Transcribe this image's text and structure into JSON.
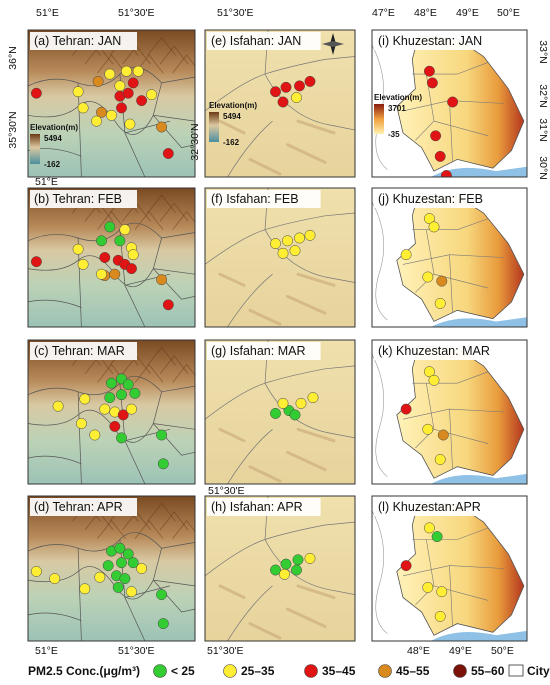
{
  "map_data": {
    "colors": {
      "lt25": "#33cc33",
      "c25_35": "#ffee33",
      "c35_45": "#e01414",
      "c45_55": "#d88a1e",
      "c55_60": "#7a1208",
      "elev_high": "#6b3a14",
      "elev_mid": "#dcc8a0",
      "elev_low": "#4a8fa0",
      "khz_high": "#b4361e",
      "khz_low": "#fff0b0",
      "water": "#8fc1e6"
    },
    "legend": {
      "title": "PM2.5 Conc.(μg/m³)",
      "items": [
        {
          "key": "lt25",
          "label": "< 25"
        },
        {
          "key": "c25_35",
          "label": "25–35"
        },
        {
          "key": "c35_45",
          "label": "35–45"
        },
        {
          "key": "c45_55",
          "label": "45–55"
        },
        {
          "key": "c55_60",
          "label": "55–60"
        }
      ],
      "city_label": "City"
    },
    "columns": [
      {
        "name": "Tehran",
        "top_ticks": [
          "51°E",
          "51°30'E"
        ],
        "bottom_ticks": [
          "51°E",
          "51°30'E"
        ],
        "left_ticks": [
          "36°N",
          "35°30'N"
        ],
        "elevation_legend": {
          "title": "Elevation(m)",
          "max": "5494",
          "min": "-162"
        }
      },
      {
        "name": "Isfahan",
        "top_ticks": [
          "51°30'E"
        ],
        "bottom_ticks": [
          "51°30'E"
        ],
        "left_ticks": [
          "32°30'N"
        ],
        "elevation_legend": {
          "title": "Elevation(m)",
          "max": "5494",
          "min": "-162"
        }
      },
      {
        "name": "Khuzestan",
        "top_ticks": [
          "47°E",
          "48°E",
          "49°E",
          "50°E"
        ],
        "bottom_ticks": [
          "48°E",
          "49°E",
          "50°E"
        ],
        "right_ticks": [
          "33°N",
          "32°N",
          "31°N",
          "30°N"
        ],
        "elevation_legend": {
          "title": "Elevation(m)",
          "max": "3701",
          "min": "-35"
        }
      }
    ],
    "panels": [
      {
        "id": "a",
        "title": "(a) Tehran: JAN",
        "region": "tehran",
        "stations": [
          [
            "c35_45",
            0.05,
            0.43
          ],
          [
            "c25_35",
            0.3,
            0.42
          ],
          [
            "c25_35",
            0.33,
            0.53
          ],
          [
            "c45_55",
            0.42,
            0.35
          ],
          [
            "c25_35",
            0.49,
            0.3
          ],
          [
            "c25_35",
            0.55,
            0.38
          ],
          [
            "c35_45",
            0.55,
            0.45
          ],
          [
            "c35_45",
            0.6,
            0.43
          ],
          [
            "c35_45",
            0.63,
            0.36
          ],
          [
            "c25_35",
            0.66,
            0.28
          ],
          [
            "c25_35",
            0.59,
            0.28
          ],
          [
            "c35_45",
            0.68,
            0.48
          ],
          [
            "c35_45",
            0.56,
            0.53
          ],
          [
            "c45_55",
            0.44,
            0.56
          ],
          [
            "c25_35",
            0.5,
            0.58
          ],
          [
            "c25_35",
            0.41,
            0.62
          ],
          [
            "c25_35",
            0.61,
            0.64
          ],
          [
            "c45_55",
            0.8,
            0.66
          ],
          [
            "c35_45",
            0.84,
            0.84
          ],
          [
            "c25_35",
            0.74,
            0.44
          ]
        ]
      },
      {
        "id": "e",
        "title": "(e) Isfahan: JAN",
        "region": "isfahan",
        "north_arrow": true,
        "stations": [
          [
            "c35_45",
            0.47,
            0.42
          ],
          [
            "c35_45",
            0.54,
            0.39
          ],
          [
            "c35_45",
            0.63,
            0.38
          ],
          [
            "c35_45",
            0.7,
            0.35
          ],
          [
            "c35_45",
            0.52,
            0.49
          ],
          [
            "c25_35",
            0.61,
            0.46
          ]
        ]
      },
      {
        "id": "i",
        "title": "(i) Khuzestan: JAN",
        "region": "khuzestan",
        "stations": [
          [
            "c35_45",
            0.37,
            0.28
          ],
          [
            "c35_45",
            0.39,
            0.36
          ],
          [
            "c35_45",
            0.41,
            0.72
          ],
          [
            "c35_45",
            0.44,
            0.86
          ],
          [
            "c35_45",
            0.52,
            0.49
          ],
          [
            "c35_45",
            0.48,
            0.99
          ]
        ]
      },
      {
        "id": "b",
        "title": "(b) Tehran: FEB",
        "region": "tehran",
        "stations": [
          [
            "c35_45",
            0.05,
            0.53
          ],
          [
            "c25_35",
            0.3,
            0.44
          ],
          [
            "c25_35",
            0.33,
            0.55
          ],
          [
            "c45_55",
            0.46,
            0.63
          ],
          [
            "c33cc33",
            0.0,
            0.0
          ],
          [
            "lt25",
            0.49,
            0.28
          ],
          [
            "lt25",
            0.44,
            0.38
          ],
          [
            "lt25",
            0.55,
            0.38
          ],
          [
            "c25_35",
            0.58,
            0.3
          ],
          [
            "c25_35",
            0.62,
            0.43
          ],
          [
            "c35_45",
            0.46,
            0.5
          ],
          [
            "c35_45",
            0.54,
            0.52
          ],
          [
            "c35_45",
            0.58,
            0.55
          ],
          [
            "c35_45",
            0.62,
            0.58
          ],
          [
            "c45_55",
            0.52,
            0.62
          ],
          [
            "c25_35",
            0.63,
            0.48
          ],
          [
            "c45_55",
            0.8,
            0.66
          ],
          [
            "c35_45",
            0.84,
            0.84
          ],
          [
            "c25_35",
            0.44,
            0.62
          ]
        ]
      },
      {
        "id": "f",
        "title": "(f) Isfahan: FEB",
        "region": "isfahan",
        "stations": [
          [
            "c25_35",
            0.47,
            0.4
          ],
          [
            "c25_35",
            0.55,
            0.38
          ],
          [
            "c25_35",
            0.63,
            0.36
          ],
          [
            "c25_35",
            0.7,
            0.34
          ],
          [
            "c25_35",
            0.52,
            0.47
          ],
          [
            "c25_35",
            0.6,
            0.45
          ]
        ]
      },
      {
        "id": "j",
        "title": "(j) Khuzestan: FEB",
        "region": "khuzestan",
        "stations": [
          [
            "c25_35",
            0.37,
            0.22
          ],
          [
            "c25_35",
            0.4,
            0.28
          ],
          [
            "c25_35",
            0.22,
            0.48
          ],
          [
            "c45_55",
            0.45,
            0.67
          ],
          [
            "c25_35",
            0.44,
            0.83
          ],
          [
            "c25_35",
            0.36,
            0.64
          ]
        ]
      },
      {
        "id": "c",
        "title": "(c) Tehran: MAR",
        "region": "tehran",
        "stations": [
          [
            "lt25",
            0.5,
            0.3
          ],
          [
            "lt25",
            0.56,
            0.27
          ],
          [
            "lt25",
            0.6,
            0.31
          ],
          [
            "lt25",
            0.49,
            0.4
          ],
          [
            "lt25",
            0.56,
            0.38
          ],
          [
            "lt25",
            0.64,
            0.37
          ],
          [
            "c25_35",
            0.34,
            0.41
          ],
          [
            "c25_35",
            0.46,
            0.48
          ],
          [
            "c25_35",
            0.52,
            0.5
          ],
          [
            "c35_45",
            0.57,
            0.52
          ],
          [
            "c25_35",
            0.62,
            0.48
          ],
          [
            "c35_45",
            0.52,
            0.6
          ],
          [
            "lt25",
            0.56,
            0.68
          ],
          [
            "c25_35",
            0.32,
            0.58
          ],
          [
            "c25_35",
            0.4,
            0.66
          ],
          [
            "lt25",
            0.8,
            0.66
          ],
          [
            "lt25",
            0.81,
            0.86
          ],
          [
            "c25_35",
            0.18,
            0.46
          ]
        ]
      },
      {
        "id": "g",
        "title": "(g) Isfahan: MAR",
        "region": "isfahan",
        "stations": [
          [
            "lt25",
            0.47,
            0.51
          ],
          [
            "lt25",
            0.56,
            0.49
          ],
          [
            "c25_35",
            0.64,
            0.44
          ],
          [
            "c25_35",
            0.72,
            0.4
          ],
          [
            "c25_35",
            0.52,
            0.44
          ],
          [
            "lt25",
            0.6,
            0.52
          ]
        ]
      },
      {
        "id": "k",
        "title": "(k) Khuzestan: MAR",
        "region": "khuzestan",
        "stations": [
          [
            "c25_35",
            0.37,
            0.22
          ],
          [
            "c25_35",
            0.4,
            0.28
          ],
          [
            "c35_45",
            0.22,
            0.48
          ],
          [
            "c45_55",
            0.46,
            0.66
          ],
          [
            "c25_35",
            0.44,
            0.83
          ],
          [
            "c25_35",
            0.36,
            0.62
          ]
        ]
      },
      {
        "id": "d",
        "title": "(d) Tehran: APR",
        "region": "tehran",
        "stations": [
          [
            "lt25",
            0.5,
            0.38
          ],
          [
            "lt25",
            0.55,
            0.36
          ],
          [
            "lt25",
            0.6,
            0.4
          ],
          [
            "lt25",
            0.48,
            0.48
          ],
          [
            "lt25",
            0.56,
            0.46
          ],
          [
            "lt25",
            0.63,
            0.46
          ],
          [
            "c25_35",
            0.43,
            0.56
          ],
          [
            "lt25",
            0.53,
            0.55
          ],
          [
            "lt25",
            0.58,
            0.57
          ],
          [
            "lt25",
            0.54,
            0.63
          ],
          [
            "c25_35",
            0.34,
            0.64
          ],
          [
            "c25_35",
            0.62,
            0.66
          ],
          [
            "c25_35",
            0.05,
            0.52
          ],
          [
            "c25_35",
            0.16,
            0.57
          ],
          [
            "lt25",
            0.8,
            0.68
          ],
          [
            "lt25",
            0.81,
            0.88
          ],
          [
            "c25_35",
            0.68,
            0.5
          ]
        ]
      },
      {
        "id": "h",
        "title": "(h) Isfahan: APR",
        "region": "isfahan",
        "stations": [
          [
            "lt25",
            0.47,
            0.51
          ],
          [
            "lt25",
            0.54,
            0.47
          ],
          [
            "lt25",
            0.62,
            0.44
          ],
          [
            "c25_35",
            0.7,
            0.43
          ],
          [
            "c25_35",
            0.53,
            0.54
          ],
          [
            "lt25",
            0.61,
            0.51
          ]
        ]
      },
      {
        "id": "l",
        "title": "(l) Khuzestan:APR",
        "region": "khuzestan",
        "stations": [
          [
            "c25_35",
            0.37,
            0.22
          ],
          [
            "lt25",
            0.42,
            0.28
          ],
          [
            "c35_45",
            0.22,
            0.48
          ],
          [
            "c25_35",
            0.45,
            0.66
          ],
          [
            "c25_35",
            0.44,
            0.83
          ],
          [
            "c25_35",
            0.36,
            0.63
          ]
        ]
      }
    ]
  }
}
